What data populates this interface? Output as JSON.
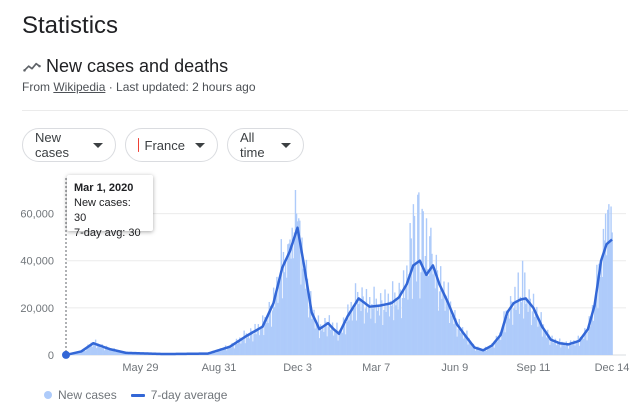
{
  "page": {
    "title": "Statistics",
    "subtitle": "New cases and deaths",
    "source_prefix": "From",
    "source_link": "Wikipedia",
    "updated": "· Last updated: 2 hours ago"
  },
  "filters": {
    "metric": "New cases",
    "country": "France",
    "range": "All time"
  },
  "colors": {
    "bar": "#aecbfa",
    "line": "#3367d6",
    "flag": [
      "#0055a4",
      "#ffffff",
      "#ef4135"
    ]
  },
  "tooltip": {
    "date": "Mar 1, 2020",
    "new_cases": "New cases: 30",
    "avg": "7-day avg: 30"
  },
  "legend": {
    "bars": "New cases",
    "line": "7-day average"
  },
  "chart_data": {
    "type": "bar",
    "y_ticks": [
      0,
      20000,
      40000,
      60000
    ],
    "y_tick_labels": [
      "0",
      "20,000",
      "40,000",
      "60,000"
    ],
    "ylim": [
      0,
      70000
    ],
    "x_tick_labels": [
      "May 29",
      "Aug 31",
      "Dec 3",
      "Mar 7",
      "Jun 9",
      "Sep 11",
      "Dec 14"
    ],
    "avg_anchors": [
      [
        0,
        30
      ],
      [
        14,
        1500
      ],
      [
        25,
        5000
      ],
      [
        40,
        2500
      ],
      [
        55,
        900
      ],
      [
        90,
        400
      ],
      [
        130,
        600
      ],
      [
        150,
        3500
      ],
      [
        165,
        8000
      ],
      [
        180,
        12000
      ],
      [
        190,
        22000
      ],
      [
        198,
        37000
      ],
      [
        205,
        44000
      ],
      [
        212,
        54000
      ],
      [
        218,
        38000
      ],
      [
        225,
        18000
      ],
      [
        232,
        11000
      ],
      [
        240,
        13500
      ],
      [
        245,
        11000
      ],
      [
        250,
        9000
      ],
      [
        258,
        16500
      ],
      [
        268,
        24000
      ],
      [
        278,
        20500
      ],
      [
        288,
        21000
      ],
      [
        298,
        22000
      ],
      [
        305,
        24500
      ],
      [
        312,
        30000
      ],
      [
        318,
        38000
      ],
      [
        324,
        40000
      ],
      [
        330,
        34000
      ],
      [
        336,
        38000
      ],
      [
        342,
        30000
      ],
      [
        350,
        22000
      ],
      [
        358,
        13000
      ],
      [
        366,
        8000
      ],
      [
        374,
        3200
      ],
      [
        382,
        2000
      ],
      [
        390,
        4000
      ],
      [
        398,
        8500
      ],
      [
        404,
        18000
      ],
      [
        410,
        22000
      ],
      [
        416,
        23500
      ],
      [
        421,
        24000
      ],
      [
        428,
        20000
      ],
      [
        436,
        12000
      ],
      [
        444,
        6500
      ],
      [
        452,
        5000
      ],
      [
        460,
        4500
      ],
      [
        470,
        6000
      ],
      [
        478,
        11000
      ],
      [
        484,
        21000
      ],
      [
        490,
        40000
      ],
      [
        495,
        47000
      ],
      [
        500,
        49000
      ]
    ],
    "bar_factor": [
      1.1,
      0.6,
      0.9,
      1.3,
      0.85,
      1.0,
      1.2,
      0.75,
      1.05,
      0.95,
      1.4,
      0.65,
      1.15,
      0.9,
      1.0,
      0.8,
      1.25
    ],
    "spikes": [
      [
        203,
        47000
      ],
      [
        205,
        49000
      ],
      [
        207,
        54000
      ],
      [
        209,
        52000
      ],
      [
        210,
        70000
      ],
      [
        211,
        60000
      ],
      [
        213,
        58000
      ],
      [
        214,
        57000
      ],
      [
        312,
        38000
      ],
      [
        315,
        56000
      ],
      [
        318,
        64000
      ],
      [
        319,
        59000
      ],
      [
        322,
        68000
      ],
      [
        323,
        69000
      ],
      [
        326,
        62000
      ],
      [
        327,
        61000
      ],
      [
        330,
        58000
      ],
      [
        334,
        54000
      ],
      [
        414,
        35000
      ],
      [
        418,
        40000
      ],
      [
        420,
        35000
      ],
      [
        494,
        60000
      ],
      [
        497,
        64000
      ],
      [
        499,
        63000
      ],
      [
        500,
        52000
      ]
    ],
    "tick_days": [
      89,
      183,
      277,
      371,
      465,
      559,
      653
    ]
  }
}
